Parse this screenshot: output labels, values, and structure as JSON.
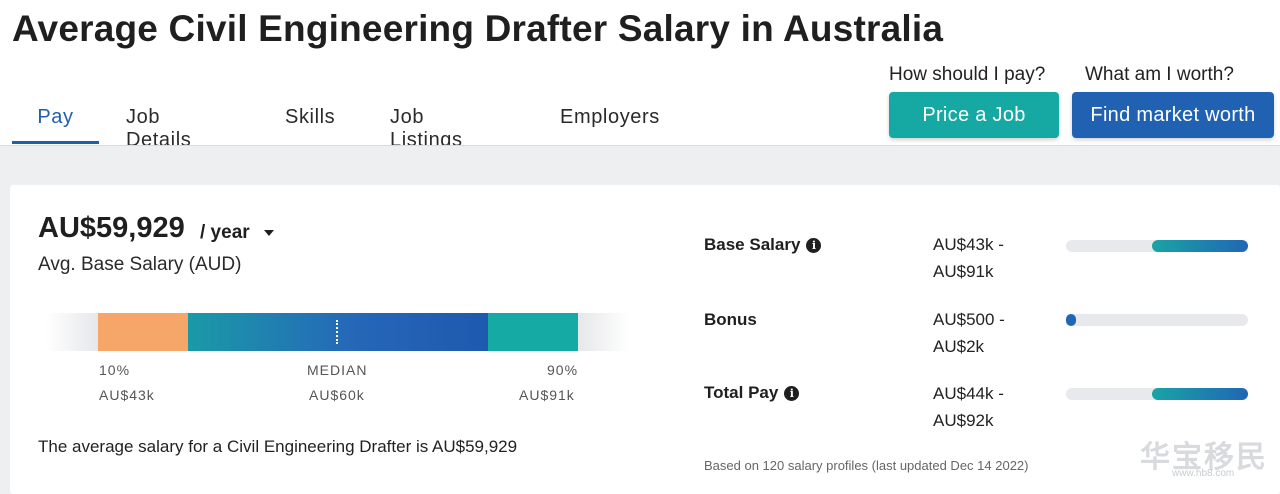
{
  "page": {
    "title": "Average Civil Engineering Drafter Salary in Australia"
  },
  "tabs": [
    {
      "label": "Pay",
      "active": true
    },
    {
      "label": "Job Details",
      "active": false
    },
    {
      "label": "Skills",
      "active": false
    },
    {
      "label": "Job Listings",
      "active": false
    },
    {
      "label": "Employers",
      "active": false
    }
  ],
  "cta": {
    "price_question": "How should I pay?",
    "price_button": "Price a Job",
    "worth_question": "What am I worth?",
    "worth_button": "Find market worth"
  },
  "salary": {
    "amount": "AU$59,929",
    "period": "/ year",
    "label": "Avg. Base Salary (AUD)",
    "percentiles": {
      "p10_label": "10%",
      "p10_value": "AU$43k",
      "median_label": "MEDIAN",
      "median_value": "AU$60k",
      "p90_label": "90%",
      "p90_value": "AU$91k"
    },
    "summary": "The average salary for a Civil Engineering Drafter is AU$59,929"
  },
  "breakdown": [
    {
      "label": "Base Salary",
      "has_info": true,
      "range_line1": "AU$43k -",
      "range_line2": "AU$91k",
      "bar_start": 0.47,
      "bar_end": 1.0
    },
    {
      "label": "Bonus",
      "has_info": false,
      "range_line1": "AU$500 -",
      "range_line2": "AU$2k",
      "bar_start": 0.0,
      "bar_end": 0.05
    },
    {
      "label": "Total Pay",
      "has_info": true,
      "range_line1": "AU$44k -",
      "range_line2": "AU$92k",
      "bar_start": 0.47,
      "bar_end": 1.0
    }
  ],
  "note": "Based on 120 salary profiles (last updated Dec 14 2022)",
  "watermark": {
    "text": "华宝移民",
    "sub": "www.hb8.com"
  },
  "colors": {
    "accent_blue": "#1f5faf",
    "teal_button": "#16a8a2",
    "blue_button": "#2161b1",
    "p10_segment": "#f7a66a",
    "p90_segment": "#16aaa4"
  },
  "icons": [
    "info-icon",
    "caret-down-icon"
  ]
}
